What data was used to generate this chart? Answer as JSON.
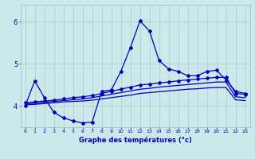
{
  "xlabel": "Graphe des températures (°c)",
  "bg_color": "#cce8ea",
  "line_color": "#0000bb",
  "grid_color": "#aacccc",
  "x_ticks": [
    0,
    1,
    2,
    3,
    4,
    5,
    6,
    7,
    8,
    9,
    10,
    11,
    12,
    13,
    14,
    15,
    16,
    17,
    18,
    19,
    20,
    21,
    22,
    23
  ],
  "y_ticks": [
    4,
    5,
    6
  ],
  "ylim": [
    3.5,
    6.4
  ],
  "xlim": [
    -0.5,
    23.5
  ],
  "line1_y": [
    4.0,
    4.6,
    4.2,
    3.85,
    3.72,
    3.65,
    3.6,
    3.62,
    4.35,
    4.38,
    4.82,
    5.38,
    6.02,
    5.78,
    5.08,
    4.88,
    4.82,
    4.72,
    4.72,
    4.82,
    4.85,
    4.62,
    4.35,
    4.3
  ],
  "line2_y": [
    4.08,
    4.1,
    4.12,
    4.14,
    4.17,
    4.2,
    4.22,
    4.25,
    4.3,
    4.35,
    4.4,
    4.45,
    4.5,
    4.52,
    4.55,
    4.57,
    4.6,
    4.62,
    4.64,
    4.66,
    4.68,
    4.68,
    4.3,
    4.28
  ],
  "line3_y": [
    4.05,
    4.07,
    4.09,
    4.11,
    4.13,
    4.15,
    4.17,
    4.2,
    4.24,
    4.28,
    4.32,
    4.36,
    4.4,
    4.42,
    4.45,
    4.47,
    4.49,
    4.51,
    4.53,
    4.55,
    4.57,
    4.57,
    4.22,
    4.2
  ],
  "line4_y": [
    4.03,
    4.04,
    4.06,
    4.08,
    4.1,
    4.11,
    4.12,
    4.14,
    4.17,
    4.2,
    4.23,
    4.26,
    4.3,
    4.32,
    4.34,
    4.36,
    4.38,
    4.4,
    4.41,
    4.43,
    4.44,
    4.44,
    4.15,
    4.13
  ]
}
